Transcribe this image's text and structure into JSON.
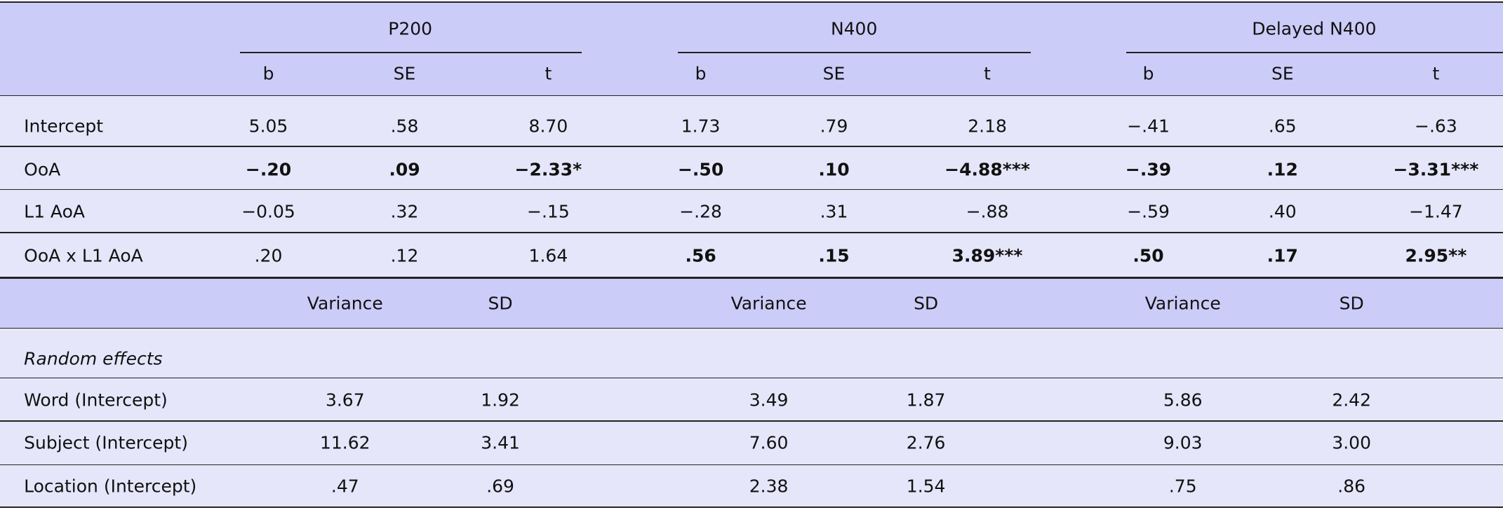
{
  "fixed_effects": {
    "groups": [
      "P200",
      "N400",
      "Delayed N400"
    ],
    "columns": [
      "b",
      "SE",
      "t",
      "b",
      "SE",
      "t",
      "b",
      "SE",
      "t"
    ],
    "rows": [
      {
        "label": "Intercept",
        "cells": [
          "5.05",
          ".58",
          "8.70",
          "1.73",
          ".79",
          "2.18",
          "−.41",
          ".65",
          "−.63"
        ],
        "bold": [
          false,
          false,
          false,
          false,
          false,
          false,
          false,
          false,
          false
        ]
      },
      {
        "label": "OoA",
        "cells": [
          "−.20",
          ".09",
          "−2.33*",
          "−.50",
          ".10",
          "−4.88***",
          "−.39",
          ".12",
          "−3.31***"
        ],
        "bold": [
          true,
          true,
          true,
          true,
          true,
          true,
          true,
          true,
          true
        ]
      },
      {
        "label": "L1 AoA",
        "cells": [
          "−0.05",
          ".32",
          "−.15",
          "−.28",
          ".31",
          "−.88",
          "−.59",
          ".40",
          "−1.47"
        ],
        "bold": [
          false,
          false,
          false,
          false,
          false,
          false,
          false,
          false,
          false
        ]
      },
      {
        "label": "OoA x L1 AoA",
        "cells": [
          ".20",
          ".12",
          "1.64",
          ".56",
          ".15",
          "3.89***",
          ".50",
          ".17",
          "2.95**"
        ],
        "bold": [
          false,
          false,
          false,
          true,
          true,
          true,
          true,
          true,
          true
        ]
      }
    ]
  },
  "random_effects": {
    "columns": [
      "Variance",
      "SD",
      "Variance",
      "SD",
      "Variance",
      "SD"
    ],
    "section_label": "Random effects",
    "rows": [
      {
        "label": "Word (Intercept)",
        "cells": [
          "3.67",
          "1.92",
          "3.49",
          "1.87",
          "5.86",
          "2.42"
        ]
      },
      {
        "label": "Subject (Intercept)",
        "cells": [
          "11.62",
          "3.41",
          "7.60",
          "2.76",
          "9.03",
          "3.00"
        ]
      },
      {
        "label": "Location (Intercept)",
        "cells": [
          ".47",
          ".69",
          "2.38",
          "1.54",
          ".75",
          ".86"
        ]
      }
    ]
  }
}
